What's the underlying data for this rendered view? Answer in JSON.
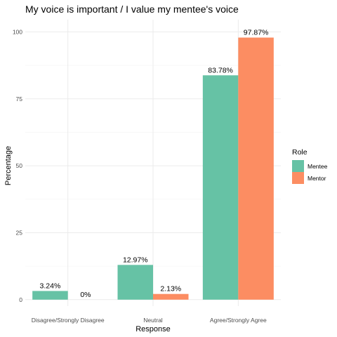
{
  "chart_data": {
    "type": "bar",
    "title": "My voice is important / I value my mentee's voice",
    "xlabel": "Response",
    "ylabel": "Percentage",
    "categories": [
      "Disagree/Strongly Disagree",
      "Neutral",
      "Agree/Strongly Agree"
    ],
    "series": [
      {
        "name": "Mentee",
        "values": [
          3.24,
          12.97,
          83.78
        ],
        "labels": [
          "3.24%",
          "12.97%",
          "83.78%"
        ],
        "color": "#66c2a5"
      },
      {
        "name": "Mentor",
        "values": [
          0,
          2.13,
          97.87
        ],
        "labels": [
          "0%",
          "2.13%",
          "97.87%"
        ],
        "color": "#fc8d62"
      }
    ],
    "yticks": [
      0,
      25,
      50,
      75,
      100
    ],
    "ylim": [
      0,
      102.8
    ],
    "grid": true,
    "legend": {
      "title": "Role",
      "position": "right"
    }
  }
}
